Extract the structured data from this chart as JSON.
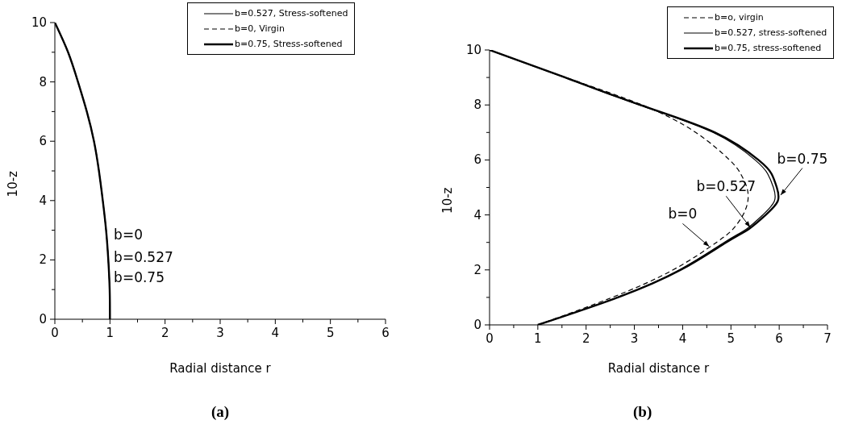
{
  "chart_data": [
    {
      "type": "line",
      "xlabel": "Radial distance r",
      "ylabel": "10-z",
      "xlim": [
        0,
        6
      ],
      "ylim": [
        0,
        10
      ],
      "xticks": [
        0,
        {
          "value": 0.5,
          "label": null
        },
        1,
        {
          "value": 1.5,
          "label": null
        },
        2,
        {
          "value": 2.5,
          "label": null
        },
        3,
        {
          "value": 3.5,
          "label": null
        },
        4,
        {
          "value": 4.5,
          "label": null
        },
        5,
        {
          "value": 5.5,
          "label": null
        },
        6
      ],
      "yticks": [
        0,
        {
          "value": 1,
          "label": null
        },
        2,
        {
          "value": 3,
          "label": null
        },
        4,
        {
          "value": 5,
          "label": null
        },
        6,
        {
          "value": 7,
          "label": null
        },
        8,
        {
          "value": 9,
          "label": null
        },
        10
      ],
      "grid": false,
      "legend": "top right",
      "marker": "none",
      "series": [
        {
          "name": "b=0.527, Stress-softened",
          "color": "#000000",
          "line_style": "solid",
          "x": [
            1,
            0.995,
            0.97,
            0.93,
            0.87,
            0.8,
            0.71,
            0.58,
            0.42,
            0.24,
            0
          ],
          "values": [
            0,
            1,
            2,
            3,
            4,
            5,
            6,
            7,
            8,
            9,
            10
          ]
        },
        {
          "name": "b=0, Virgin",
          "color": "#000000",
          "line_style": "dashed",
          "x": [
            1,
            0.995,
            0.97,
            0.93,
            0.87,
            0.8,
            0.71,
            0.58,
            0.42,
            0.24,
            0
          ],
          "values": [
            0,
            1,
            2,
            3,
            4,
            5,
            6,
            7,
            8,
            9,
            10
          ]
        },
        {
          "name": "b=0.75, Stress-softened",
          "color": "#000000",
          "line_style": "solid",
          "x": [
            1,
            0.995,
            0.97,
            0.93,
            0.87,
            0.8,
            0.71,
            0.58,
            0.42,
            0.24,
            0
          ],
          "values": [
            0,
            1,
            2,
            3,
            4,
            5,
            6,
            7,
            8,
            9,
            10
          ]
        }
      ],
      "annotations": [
        {
          "text": "b=0",
          "x": 1,
          "y": 2.85
        },
        {
          "text": "b=0.527",
          "x": 1,
          "y": 2.1
        },
        {
          "text": "b=0.75",
          "x": 1,
          "y": 1.4
        },
        "(a)"
      ]
    },
    {
      "type": "line",
      "xlabel": "Radial distance r",
      "ylabel": "10-z",
      "xlim": [
        0,
        7
      ],
      "ylim": [
        0,
        10
      ],
      "xticks": [
        0,
        {
          "value": 0.5,
          "label": null
        },
        1,
        {
          "value": 1.5,
          "label": null
        },
        2,
        {
          "value": 2.5,
          "label": null
        },
        3,
        {
          "value": 3.5,
          "label": null
        },
        4,
        {
          "value": 4.5,
          "label": null
        },
        5,
        {
          "value": 5.5,
          "label": null
        },
        6,
        {
          "value": 6.5,
          "label": null
        },
        7
      ],
      "yticks": [
        0,
        {
          "value": 1,
          "label": null
        },
        2,
        {
          "value": 3,
          "label": null
        },
        4,
        {
          "value": 5,
          "label": null
        },
        6,
        {
          "value": 7,
          "label": null
        },
        8,
        {
          "value": 9,
          "label": null
        },
        10
      ],
      "grid": false,
      "legend": "top right",
      "marker": "none",
      "series": [
        {
          "name": "b=o, virgin",
          "color": "#000000",
          "line_style": "dashed",
          "x": [
            1,
            2.54,
            3.8,
            4.7,
            5.05,
            5.25,
            5.35,
            5.33,
            5.2,
            4.97,
            4.27,
            3.16,
            1.58,
            0
          ],
          "values": [
            0,
            1,
            2,
            3,
            3.5,
            4,
            4.5,
            5,
            5.5,
            6,
            7,
            8,
            9,
            10
          ]
        },
        {
          "name": "b=0.527, stress-softened",
          "color": "#000000",
          "line_style": "solid",
          "x": [
            1,
            2.64,
            3.93,
            4.86,
            5.33,
            5.66,
            5.9,
            5.88,
            5.76,
            5.5,
            4.63,
            3.1,
            1.56,
            0
          ],
          "values": [
            0,
            1,
            2,
            3,
            3.5,
            4,
            4.5,
            5,
            5.5,
            6,
            7,
            8,
            9,
            10
          ]
        },
        {
          "name": "b=0.75, stress-softened",
          "color": "#000000",
          "line_style": "solid",
          "x": [
            1,
            2.66,
            3.96,
            4.9,
            5.38,
            5.72,
            5.97,
            5.95,
            5.84,
            5.57,
            4.67,
            3.12,
            1.57,
            0
          ],
          "values": [
            0,
            1,
            2,
            3,
            3.5,
            4,
            4.5,
            5,
            5.5,
            6,
            7,
            8,
            9,
            10
          ]
        }
      ],
      "annotations": [
        {
          "text": "b=0.75",
          "x": 6.03,
          "y": 4.72
        },
        {
          "text": "b=0.527",
          "x": 5.4,
          "y": 3.55
        },
        {
          "text": "b=0",
          "x": 4.55,
          "y": 2.85
        },
        "(b)"
      ]
    }
  ]
}
